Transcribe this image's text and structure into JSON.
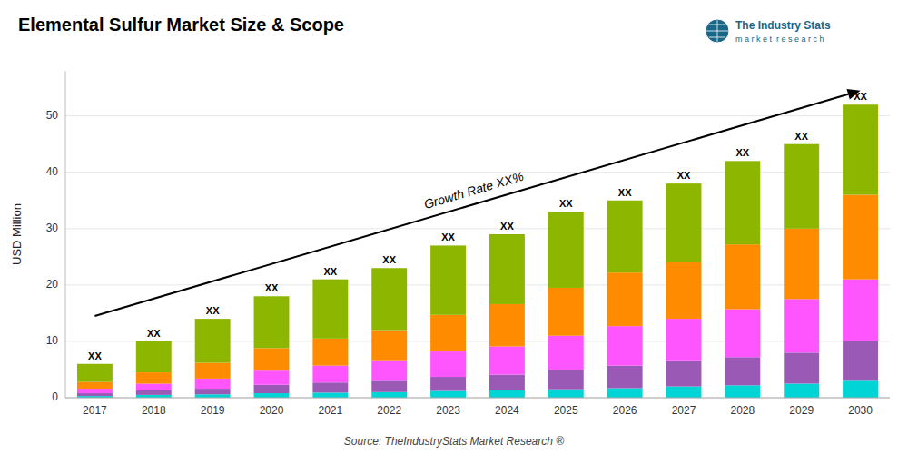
{
  "chart_data": {
    "type": "bar",
    "stacked": true,
    "title": "Elemental Sulfur Market Size & Scope",
    "y_label": "USD Million",
    "categories": [
      "2017",
      "2018",
      "2019",
      "2020",
      "2021",
      "2022",
      "2023",
      "2024",
      "2025",
      "2026",
      "2027",
      "2028",
      "2029",
      "2030"
    ],
    "series": [
      {
        "color": "#00D4D4",
        "values": [
          0.3,
          0.5,
          0.6,
          0.8,
          0.9,
          1.0,
          1.2,
          1.3,
          1.5,
          1.7,
          2.0,
          2.2,
          2.5,
          3.0
        ]
      },
      {
        "color": "#9B59B6",
        "values": [
          0.5,
          0.8,
          1.0,
          1.5,
          1.8,
          2.0,
          2.5,
          2.8,
          3.5,
          4.0,
          4.5,
          5.0,
          5.5,
          7.0
        ]
      },
      {
        "color": "#FF55FF",
        "values": [
          0.8,
          1.2,
          1.8,
          2.5,
          3.0,
          3.5,
          4.5,
          5.0,
          6.0,
          7.0,
          7.5,
          8.5,
          9.5,
          11.0
        ]
      },
      {
        "color": "#FF8C00",
        "values": [
          1.2,
          2.0,
          2.8,
          4.0,
          4.8,
          5.5,
          6.5,
          7.5,
          8.5,
          9.5,
          10.0,
          11.5,
          12.5,
          15.0
        ]
      },
      {
        "color": "#8DB600",
        "values": [
          3.2,
          5.5,
          7.8,
          9.2,
          10.5,
          11.0,
          12.3,
          12.4,
          13.5,
          12.8,
          14.0,
          14.8,
          15.0,
          16.0
        ]
      }
    ],
    "bar_labels": [
      "XX",
      "XX",
      "XX",
      "XX",
      "XX",
      "XX",
      "XX",
      "XX",
      "XX",
      "XX",
      "XX",
      "XX",
      "XX",
      "XX"
    ],
    "arrow": {
      "from": {
        "category": "2017",
        "y": 14.5
      },
      "to": {
        "category": "2030",
        "y": 54.5
      },
      "label": "Growth Rate XX%"
    },
    "ylim": [
      0,
      58
    ],
    "yticks": [
      0,
      10,
      20,
      30,
      40,
      50
    ],
    "grid": true,
    "source": "Source: TheIndustryStats Market Research ®",
    "logo_title": "The Industry Stats",
    "logo_subtitle": "m a r k e t  r e s e a r c h"
  }
}
